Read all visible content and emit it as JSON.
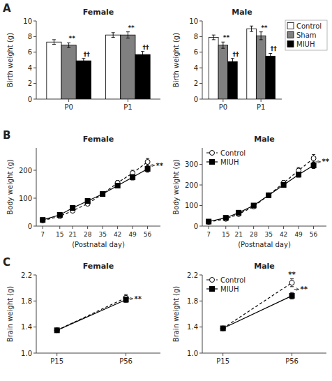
{
  "chart_data": [
    {
      "type": "bar",
      "title": "Female",
      "ylabel": "Birth weight (g)",
      "panel_label": "A",
      "categories": [
        "P0",
        "P1"
      ],
      "series": [
        {
          "name": "Control",
          "color": "#ffffff",
          "values": [
            7.3,
            8.2
          ],
          "errors": [
            0.3,
            0.3
          ]
        },
        {
          "name": "Sham",
          "color": "#808080",
          "values": [
            6.9,
            8.2
          ],
          "errors": [
            0.3,
            0.4
          ]
        },
        {
          "name": "MIUH",
          "color": "#000000",
          "values": [
            4.9,
            5.7
          ],
          "errors": [
            0.3,
            0.4
          ]
        }
      ],
      "ylim": [
        0,
        10
      ],
      "yticks": [
        0,
        2,
        4,
        6,
        8,
        10
      ],
      "annotations": [
        {
          "text": "**",
          "series": "Sham",
          "category": "P0"
        },
        {
          "text": "**",
          "series": "Sham",
          "category": "P1"
        },
        {
          "text": "††",
          "series": "MIUH",
          "category": "P0"
        },
        {
          "text": "††",
          "series": "MIUH",
          "category": "P1"
        }
      ]
    },
    {
      "type": "bar",
      "title": "Male",
      "ylabel": "Birth weight (g)",
      "categories": [
        "P0",
        "P1"
      ],
      "series": [
        {
          "name": "Control",
          "color": "#ffffff",
          "values": [
            7.9,
            9.0
          ],
          "errors": [
            0.3,
            0.35
          ]
        },
        {
          "name": "Sham",
          "color": "#808080",
          "values": [
            6.9,
            8.1
          ],
          "errors": [
            0.4,
            0.5
          ]
        },
        {
          "name": "MIUH",
          "color": "#000000",
          "values": [
            4.8,
            5.5
          ],
          "errors": [
            0.4,
            0.35
          ]
        }
      ],
      "ylim": [
        0,
        10
      ],
      "yticks": [
        0,
        2,
        4,
        6,
        8,
        10
      ],
      "legend": "upper right",
      "annotations": [
        {
          "text": "**",
          "series": "Sham",
          "category": "P0"
        },
        {
          "text": "**",
          "series": "Sham",
          "category": "P1"
        },
        {
          "text": "††",
          "series": "MIUH",
          "category": "P0"
        },
        {
          "text": "††",
          "series": "MIUH",
          "category": "P1"
        }
      ]
    },
    {
      "type": "line",
      "title": "Female",
      "xlabel": "(Postnatal day)",
      "ylabel": "Body weight (g)",
      "panel_label": "B",
      "x": [
        7,
        15,
        21,
        28,
        35,
        42,
        49,
        56
      ],
      "xlim": [
        4,
        62
      ],
      "xticks": [
        7,
        15,
        21,
        28,
        35,
        42,
        49,
        56
      ],
      "ylim": [
        0,
        280
      ],
      "yticks": [
        0,
        100,
        200
      ],
      "series": [
        {
          "name": "Control",
          "color": "#000000",
          "marker": "open-circle",
          "line_style": "dashed",
          "values": [
            20,
            35,
            55,
            80,
            115,
            155,
            190,
            230
          ],
          "errors": [
            2,
            3,
            4,
            5,
            7,
            8,
            10,
            12
          ]
        },
        {
          "name": "MIUH",
          "color": "#000000",
          "marker": "square",
          "line_style": "solid",
          "values": [
            22,
            40,
            65,
            90,
            115,
            145,
            175,
            205
          ],
          "errors": [
            2,
            3,
            4,
            5,
            6,
            8,
            10,
            12
          ]
        }
      ],
      "annotations": [
        {
          "text": "**",
          "between": [
            "Control",
            "MIUH"
          ],
          "x": 56
        }
      ]
    },
    {
      "type": "line",
      "title": "Male",
      "xlabel": "(Postnatal day)",
      "ylabel": "Body weight (g)",
      "x": [
        7,
        15,
        21,
        28,
        35,
        42,
        49,
        56
      ],
      "xlim": [
        4,
        62
      ],
      "xticks": [
        7,
        15,
        21,
        28,
        35,
        42,
        49,
        56
      ],
      "ylim": [
        0,
        380
      ],
      "yticks": [
        0,
        100,
        200,
        300
      ],
      "legend": "upper left",
      "series": [
        {
          "name": "Control",
          "color": "#000000",
          "marker": "open-circle",
          "line_style": "dashed",
          "values": [
            20,
            35,
            58,
            95,
            150,
            210,
            270,
            330
          ],
          "errors": [
            2,
            3,
            5,
            7,
            10,
            12,
            15,
            18
          ]
        },
        {
          "name": "MIUH",
          "color": "#000000",
          "marker": "square",
          "line_style": "solid",
          "values": [
            22,
            40,
            65,
            100,
            150,
            200,
            250,
            295
          ],
          "errors": [
            2,
            3,
            5,
            6,
            8,
            10,
            12,
            15
          ]
        }
      ],
      "annotations": [
        {
          "text": "**",
          "between": [
            "Control",
            "MIUH"
          ],
          "x": 56
        }
      ]
    },
    {
      "type": "line",
      "title": "Female",
      "ylabel": "Brain weight (g)",
      "panel_label": "C",
      "categories": [
        "P15",
        "P56"
      ],
      "ylim": [
        1.0,
        2.2
      ],
      "yticks": [
        {
          "value": 1.0,
          "label": "1.0"
        },
        1.4,
        1.8,
        2.2
      ],
      "series": [
        {
          "name": "Control",
          "color": "#000000",
          "marker": "open-circle",
          "line_style": "dashed",
          "values": [
            1.35,
            1.85
          ],
          "errors": [
            0.03,
            0.05
          ]
        },
        {
          "name": "MIUH",
          "color": "#000000",
          "marker": "square",
          "line_style": "solid",
          "values": [
            1.35,
            1.82
          ],
          "errors": [
            0.03,
            0.04
          ]
        }
      ],
      "annotations": [
        {
          "text": "**",
          "between": [
            "Control",
            "MIUH"
          ],
          "category": "P56"
        }
      ]
    },
    {
      "type": "line",
      "title": "Male",
      "ylabel": "Brain weight (g)",
      "categories": [
        "P15",
        "P56"
      ],
      "ylim": [
        1.0,
        2.2
      ],
      "yticks": [
        {
          "value": 1.0,
          "label": "1.0"
        },
        1.4,
        1.8,
        2.2
      ],
      "legend": "upper left",
      "series": [
        {
          "name": "Control",
          "color": "#000000",
          "marker": "open-circle",
          "line_style": "dashed",
          "values": [
            1.38,
            2.08
          ],
          "errors": [
            0.03,
            0.06
          ]
        },
        {
          "name": "MIUH",
          "color": "#000000",
          "marker": "square",
          "line_style": "solid",
          "values": [
            1.38,
            1.88
          ],
          "errors": [
            0.03,
            0.05
          ]
        }
      ],
      "annotations": [
        {
          "text": "**",
          "between": [
            "Control",
            "MIUH"
          ],
          "category": "P56"
        },
        {
          "text": "**",
          "series": "Control",
          "category": "P56"
        }
      ]
    }
  ]
}
